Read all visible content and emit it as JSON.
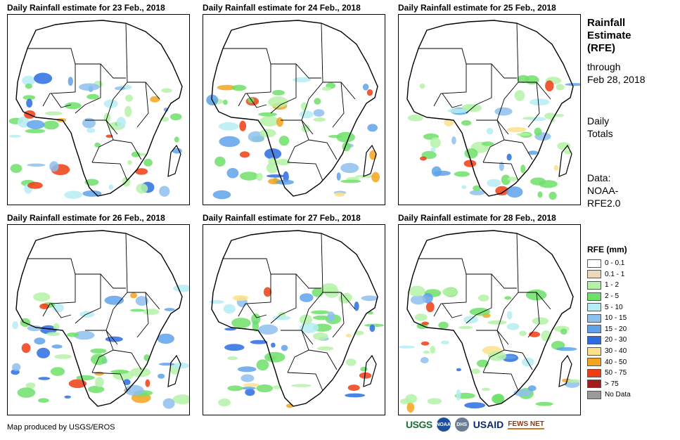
{
  "panels": [
    {
      "title": "Daily Rainfall estimate for 23 Feb., 2018"
    },
    {
      "title": "Daily Rainfall estimate for 24 Feb., 2018"
    },
    {
      "title": "Daily Rainfall estimate for 25 Feb., 2018"
    },
    {
      "title": "Daily Rainfall estimate for 26 Feb., 2018"
    },
    {
      "title": "Daily Rainfall estimate for 27 Feb., 2018"
    },
    {
      "title": "Daily Rainfall estimate for 28 Feb., 2018"
    }
  ],
  "sidebar": {
    "heading_line1": "Rainfall",
    "heading_line2": "Estimate",
    "heading_line3": "(RFE)",
    "through_label": "through",
    "through_date": "Feb 28, 2018",
    "totals_line1": "Daily",
    "totals_line2": "Totals",
    "data_line1": "Data:",
    "data_line2": "NOAA-",
    "data_line3": "RFE2.0"
  },
  "legend": {
    "title": "RFE (mm)",
    "items": [
      {
        "label": "0 - 0.1",
        "color": "#ffffff"
      },
      {
        "label": "0.1 - 1",
        "color": "#ecd9b9"
      },
      {
        "label": "1 - 2",
        "color": "#b5f2a8"
      },
      {
        "label": "2 - 5",
        "color": "#6ee06a"
      },
      {
        "label": "5 - 10",
        "color": "#b6ecf4"
      },
      {
        "label": "10 - 15",
        "color": "#8ec0ee"
      },
      {
        "label": "15 - 20",
        "color": "#5ea2ea"
      },
      {
        "label": "20 - 30",
        "color": "#2a6de0"
      },
      {
        "label": "30 - 40",
        "color": "#fbe28a"
      },
      {
        "label": "40 - 50",
        "color": "#f3a41c"
      },
      {
        "label": "50 - 75",
        "color": "#ee3d12"
      },
      {
        "label": "> 75",
        "color": "#a51a1a"
      },
      {
        "label": "No Data",
        "color": "#9a9a9a"
      }
    ]
  },
  "footer": {
    "credit": "Map produced by USGS/EROS",
    "logos": {
      "usgs": "USGS",
      "noaa": "NOAA",
      "dhs": "DHS",
      "usaid": "USAID",
      "fews": "FEWS NET"
    }
  }
}
